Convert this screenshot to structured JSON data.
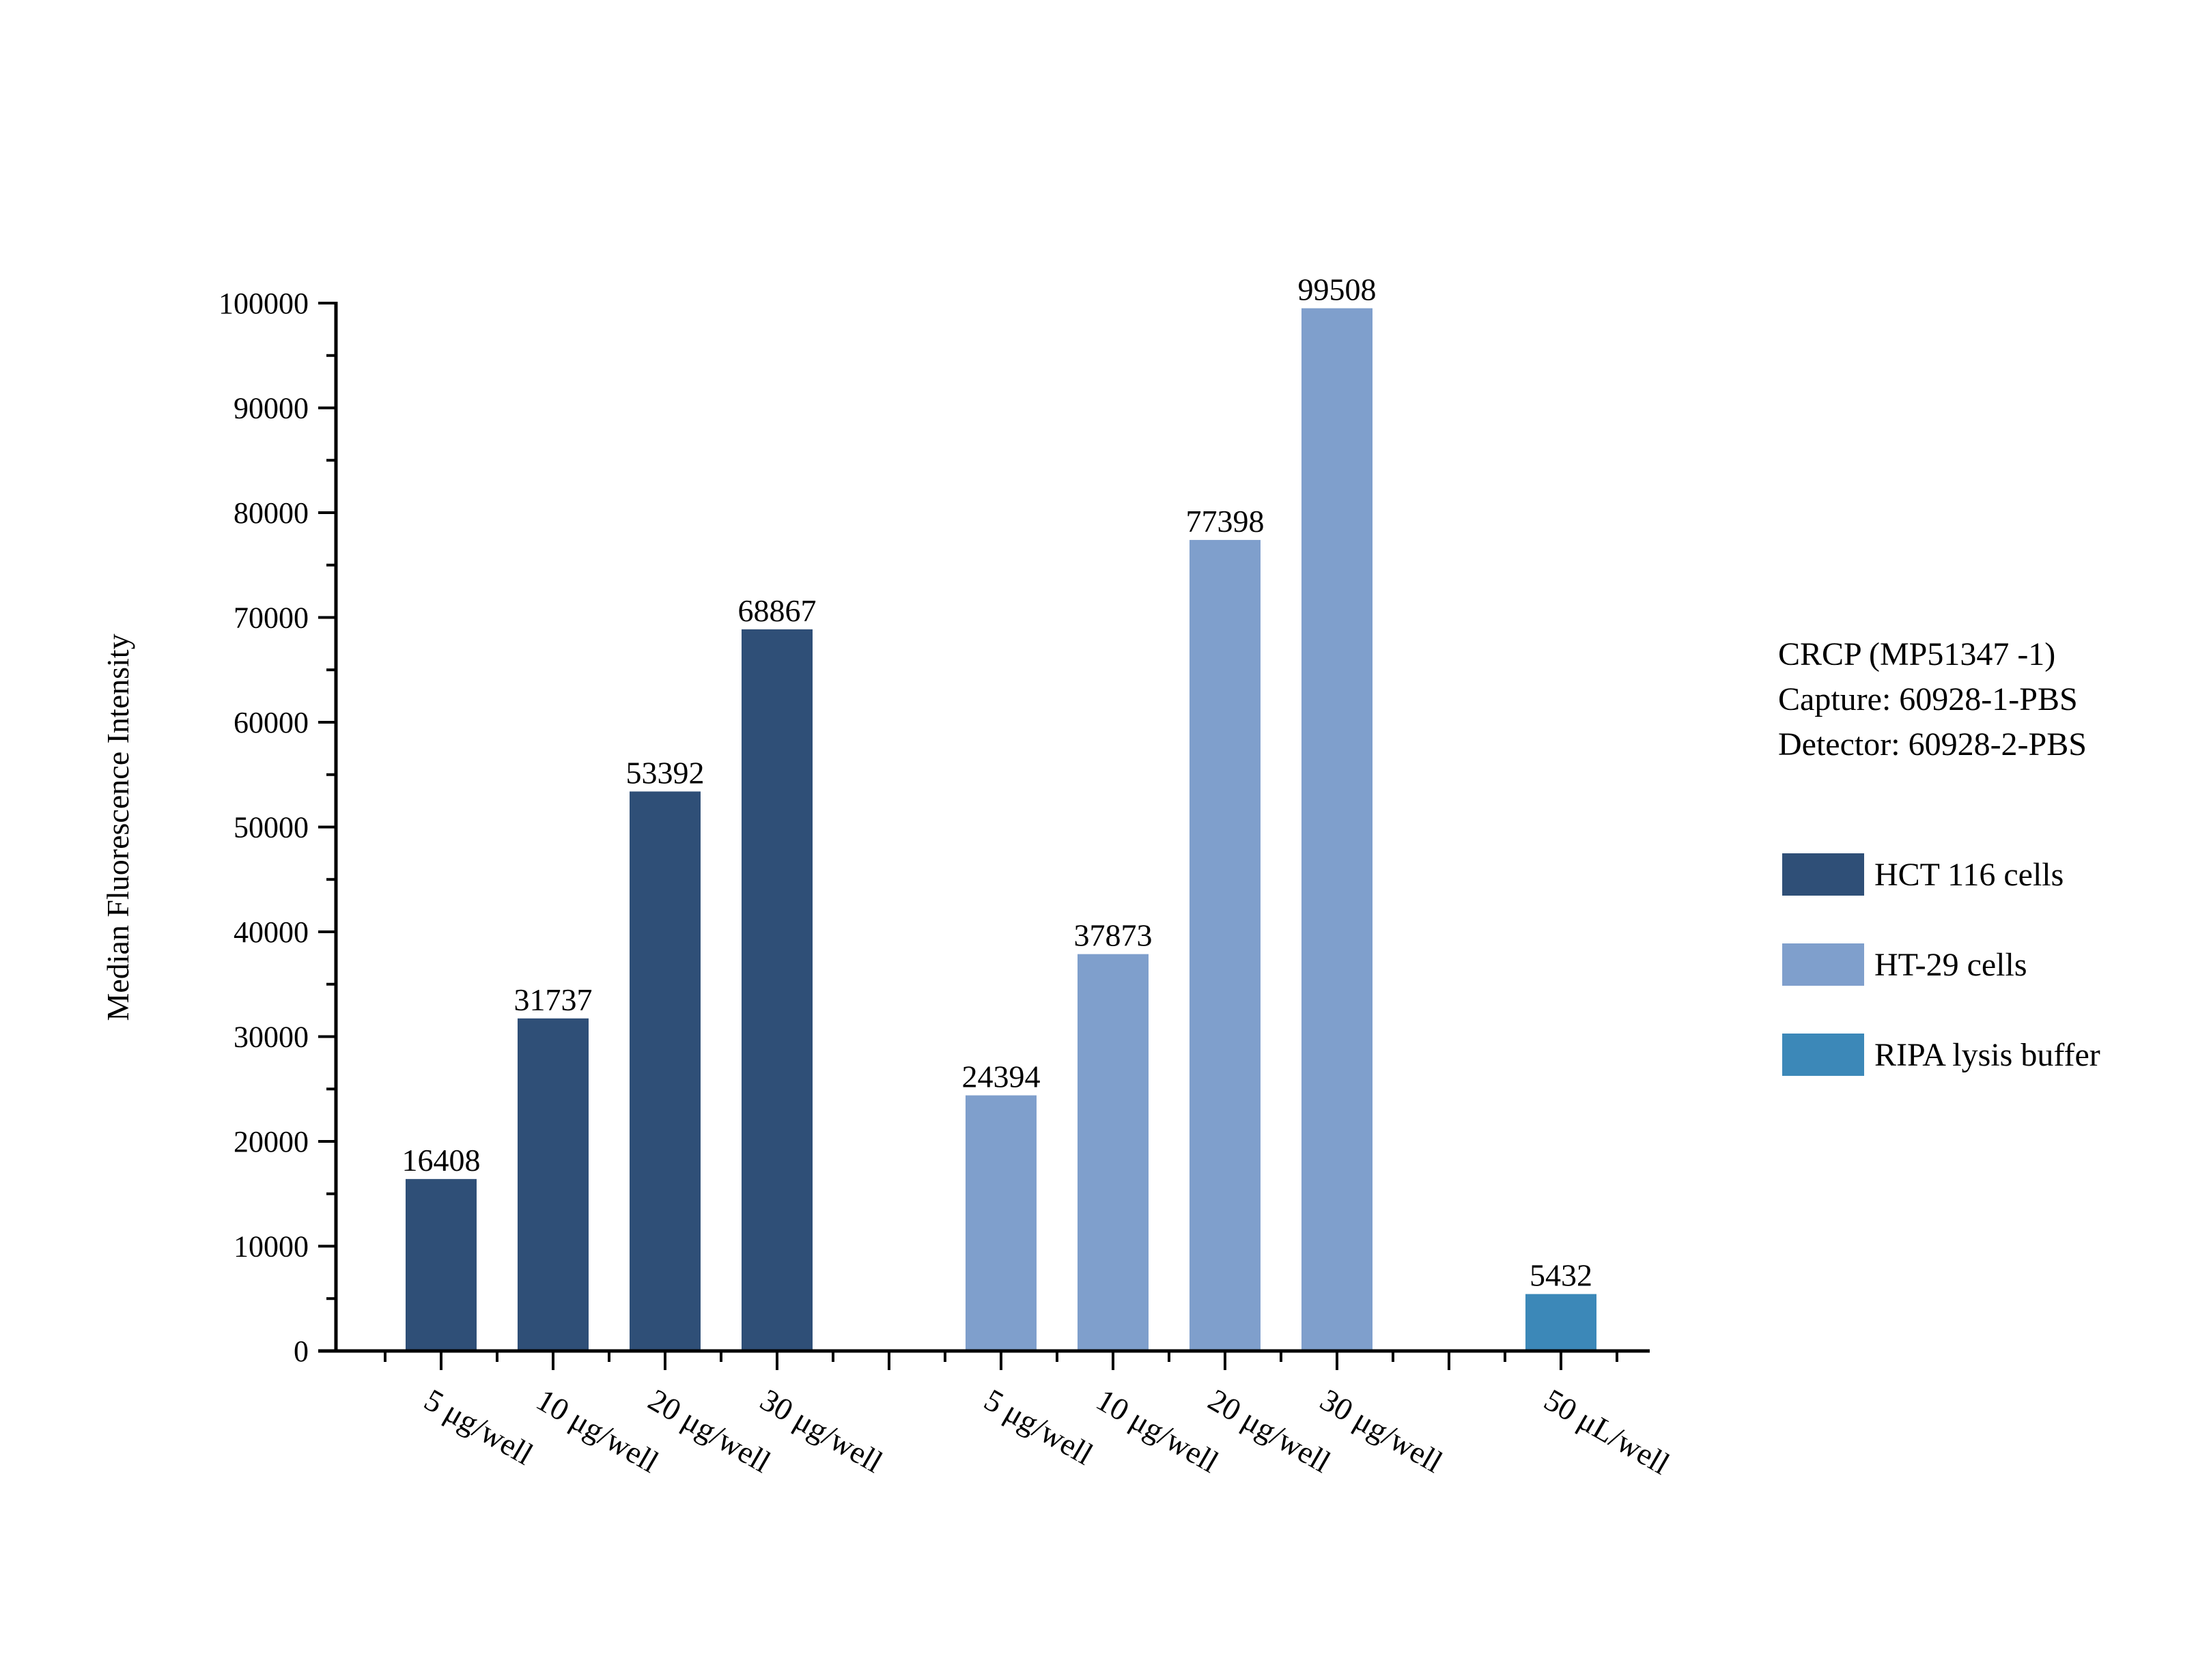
{
  "chart_data": {
    "type": "bar",
    "title": "",
    "xlabel": "",
    "ylabel": "Median Fluorescence Intensity",
    "ylim": [
      0,
      100000
    ],
    "y_major_ticks": [
      0,
      10000,
      20000,
      30000,
      40000,
      50000,
      60000,
      70000,
      80000,
      90000,
      100000
    ],
    "grid": false,
    "legend_position": "right",
    "annotation": [
      "CRCP (MP51347 -1)",
      "Capture: 60928-1-PBS",
      "Detector: 60928-2-PBS"
    ],
    "series": [
      {
        "name": "HCT 116 cells",
        "color": "#2f4f77",
        "categories": [
          "5 μg/well",
          "10 μg/well",
          "20 μg/well",
          "30 μg/well"
        ],
        "values": [
          16408,
          31737,
          53392,
          68867
        ]
      },
      {
        "name": "HT-29 cells",
        "color": "#7f9fcc",
        "categories": [
          "5 μg/well",
          "10 μg/well",
          "20 μg/well",
          "30 μg/well"
        ],
        "values": [
          24394,
          37873,
          77398,
          99508
        ]
      },
      {
        "name": "RIPA lysis buffer",
        "color": "#3c88b8",
        "categories": [
          "50 μL/well"
        ],
        "values": [
          5432
        ]
      }
    ]
  }
}
